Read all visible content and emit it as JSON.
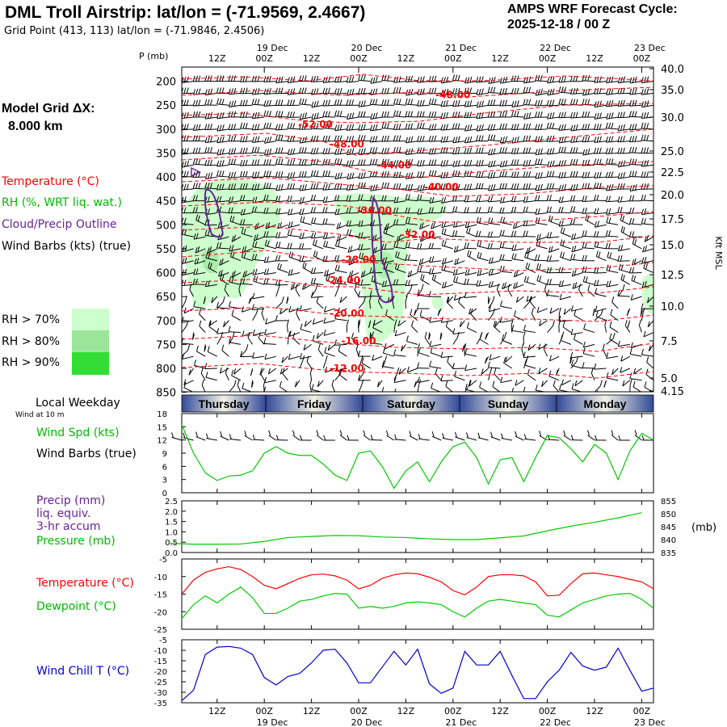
{
  "header": {
    "title": "DML Troll Airstrip:  lat/lon = (-71.9569, 2.4667)",
    "grid_point": "Grid Point (413, 113) lat/lon = (-71.9846, 2.4506)",
    "cycle_line1": "AMPS WRF Forecast Cycle:",
    "cycle_line2": "2025-12-18 / 00  Z"
  },
  "left_legend": {
    "model_grid_line1": "Model Grid ΔX:",
    "model_grid_line2": "8.000 km",
    "temperature": "Temperature (°C)",
    "rh": "RH (%, WRT liq. wat.)",
    "cloud": "Cloud/Precip Outline",
    "wind_barbs": "Wind Barbs (kts) (true)",
    "rh70": "RH > 70%",
    "rh80": "RH > 80%",
    "rh90": "RH > 90%",
    "local_weekday": "Local Weekday",
    "wind_10m": "Wind at 10 m",
    "wind_spd": "Wind Spd (kts)",
    "wind_barbs2": "Wind Barbs (true)",
    "precip1": "Precip (mm)",
    "precip2": "liq. equiv.",
    "precip3": "3-hr accum",
    "pressure": "Pressure (mb)",
    "temp2": "Temperature (°C)",
    "dewpoint": "Dewpoint (°C)",
    "windchill": "Wind Chill T (°C)"
  },
  "colors": {
    "rh70": "#ccffcc",
    "rh80": "#99e699",
    "rh90": "#33dd33",
    "temperature": "#ff0000",
    "green": "#00cc00",
    "purple": "#662299",
    "blue": "#0000cc"
  },
  "time_axis": {
    "top_day_labels": [
      "19 Dec",
      "20 Dec",
      "21 Dec",
      "22 Dec",
      "23 Dec"
    ],
    "hour_labels": [
      "12Z",
      "00Z",
      "12Z",
      "00Z",
      "12Z",
      "00Z",
      "12Z",
      "00Z",
      "12Z",
      "00Z"
    ],
    "bottom_day_labels": [
      "19 Dec",
      "20 Dec",
      "21 Dec",
      "22 Dec",
      "23 Dec"
    ]
  },
  "weekdays": [
    "Thursday",
    "Friday",
    "Saturday",
    "Sunday",
    "Monday"
  ],
  "chart_data": [
    {
      "type": "heatmap",
      "name": "time-height cross section",
      "ylabel": "P (mb)",
      "y2label": "Kft MSL",
      "pressure_ticks": [
        "200",
        "250",
        "300",
        "350",
        "400",
        "450",
        "500",
        "550",
        "600",
        "650",
        "700",
        "750",
        "800",
        "850"
      ],
      "height_ticks": [
        "40.0",
        "35.0",
        "30.0",
        "25.0",
        "22.5",
        "20.0",
        "17.5",
        "15.0",
        "12.5",
        "10.0",
        "7.5",
        "5.0",
        "4.15"
      ],
      "temperature_labels": [
        {
          "label": "-48.00",
          "hour": 72,
          "p": 235
        },
        {
          "label": "-52.00",
          "hour": 37,
          "p": 297
        },
        {
          "label": "-48.00",
          "hour": 45,
          "p": 338
        },
        {
          "label": "-44.00",
          "hour": 57,
          "p": 382
        },
        {
          "label": "-40.00",
          "hour": 69,
          "p": 428
        },
        {
          "label": "-36.00",
          "hour": 52,
          "p": 477
        },
        {
          "label": "-32.00",
          "hour": 63,
          "p": 527
        },
        {
          "label": "-28.00",
          "hour": 48,
          "p": 580
        },
        {
          "label": "-24.00",
          "hour": 44,
          "p": 623
        },
        {
          "label": "-20.00",
          "hour": 45,
          "p": 692
        },
        {
          "label": "-16.00",
          "hour": 48,
          "p": 749
        },
        {
          "label": "-12.00",
          "hour": 45,
          "p": 807
        }
      ]
    },
    {
      "type": "line",
      "name": "wind speed",
      "ylabel": "Wind Spd (kts)",
      "ylim": [
        0,
        18
      ],
      "yticks": [
        "0",
        "3",
        "6",
        "9",
        "12",
        "15",
        "18"
      ],
      "x_hours": [
        0,
        3,
        6,
        9,
        12,
        15,
        18,
        21,
        24,
        27,
        30,
        33,
        36,
        39,
        42,
        45,
        48,
        51,
        54,
        57,
        60,
        63,
        66,
        69,
        72,
        75,
        78,
        81,
        84,
        87,
        90,
        93,
        96,
        99,
        102,
        105,
        108,
        111,
        114,
        117,
        120
      ],
      "values": [
        15.5,
        9,
        4.5,
        2.8,
        3.8,
        4,
        5,
        9,
        10.5,
        9,
        8.5,
        8.5,
        6.5,
        4,
        2.8,
        9,
        9.5,
        6,
        1,
        5,
        7,
        2.5,
        7,
        10.5,
        11.5,
        8,
        2,
        7.5,
        8,
        2.5,
        8,
        13,
        12.5,
        10,
        7,
        11,
        9,
        3,
        9.5,
        13.5,
        12
      ]
    },
    {
      "type": "line",
      "name": "pressure",
      "ylabel": "Pressure (mb)",
      "y_left_ticks": [
        "0.0",
        "0.5",
        "1.0",
        "1.5",
        "2.0",
        "2.5"
      ],
      "y_right_ticks": [
        "835",
        "840",
        "845",
        "850",
        "855"
      ],
      "ylim_right": [
        835,
        855
      ],
      "x_hours": [
        0,
        6,
        12,
        18,
        24,
        30,
        36,
        42,
        48,
        54,
        60,
        66,
        72,
        78,
        84,
        90,
        96,
        102,
        108,
        114,
        120
      ],
      "values": [
        838.6,
        838.2,
        838.2,
        838.3,
        839.3,
        840.8,
        841.2,
        841.6,
        841.5,
        841,
        840.8,
        840.3,
        840,
        840,
        840.7,
        841.4,
        843.4,
        845.2,
        846.7,
        848.4,
        850.4
      ]
    },
    {
      "type": "line",
      "name": "temperature and dewpoint",
      "ylim": [
        -25,
        -5
      ],
      "yticks": [
        "-5",
        "-10",
        "-15",
        "-20",
        "-25"
      ],
      "x_hours": [
        0,
        3,
        6,
        9,
        12,
        15,
        18,
        21,
        24,
        27,
        30,
        33,
        36,
        39,
        42,
        45,
        48,
        51,
        54,
        57,
        60,
        63,
        66,
        69,
        72,
        75,
        78,
        81,
        84,
        87,
        90,
        93,
        96,
        99,
        102,
        105,
        108,
        111,
        114,
        117,
        120
      ],
      "series": [
        {
          "name": "Temperature",
          "values": [
            -15,
            -11,
            -8.8,
            -7.8,
            -7.2,
            -8,
            -10,
            -12.5,
            -13.5,
            -12,
            -10.5,
            -9.5,
            -9.3,
            -9.8,
            -11,
            -13.5,
            -12.5,
            -10.5,
            -9.5,
            -9,
            -9.2,
            -10.2,
            -11.5,
            -14,
            -15.2,
            -13,
            -10,
            -9.5,
            -9.5,
            -9.8,
            -11.5,
            -15.5,
            -15.3,
            -12,
            -9.2,
            -9,
            -9.5,
            -10,
            -10.8,
            -11.5,
            -13.5
          ]
        },
        {
          "name": "Dewpoint",
          "values": [
            -22,
            -18,
            -15.5,
            -17.5,
            -15,
            -13,
            -16,
            -20.5,
            -20.5,
            -19,
            -17,
            -16.5,
            -15.5,
            -14.8,
            -15,
            -19,
            -18.5,
            -19,
            -18.5,
            -17.5,
            -17.2,
            -17.5,
            -18,
            -20,
            -21.5,
            -19,
            -17,
            -16.5,
            -17,
            -17.5,
            -18,
            -21,
            -21.5,
            -19.5,
            -17.5,
            -16.5,
            -15.5,
            -15,
            -14.8,
            -16.5,
            -19
          ]
        }
      ]
    },
    {
      "type": "line",
      "name": "wind chill",
      "ylabel": "Wind Chill T (°C)",
      "ylim": [
        -35,
        -5
      ],
      "yticks": [
        "-5",
        "-10",
        "-15",
        "-20",
        "-25",
        "-30",
        "-35"
      ],
      "x_hours": [
        0,
        3,
        6,
        9,
        12,
        15,
        18,
        21,
        24,
        27,
        30,
        33,
        36,
        39,
        42,
        45,
        48,
        51,
        54,
        57,
        60,
        63,
        66,
        69,
        72,
        75,
        78,
        81,
        84,
        87,
        90,
        93,
        96,
        99,
        102,
        105,
        108,
        111,
        114,
        117,
        120
      ],
      "values": [
        -34,
        -29,
        -12,
        -8.5,
        -8.2,
        -9,
        -12,
        -23,
        -26.5,
        -22.5,
        -21,
        -16,
        -10,
        -9.5,
        -16,
        -25.5,
        -25.5,
        -18,
        -10.5,
        -17,
        -9.5,
        -26,
        -30.5,
        -28,
        -10.5,
        -17,
        -17,
        -10.5,
        -22,
        -33,
        -33,
        -25,
        -19.5,
        -11,
        -17.5,
        -19.5,
        -18,
        -9,
        -19.5,
        -29.5,
        -28
      ]
    }
  ]
}
